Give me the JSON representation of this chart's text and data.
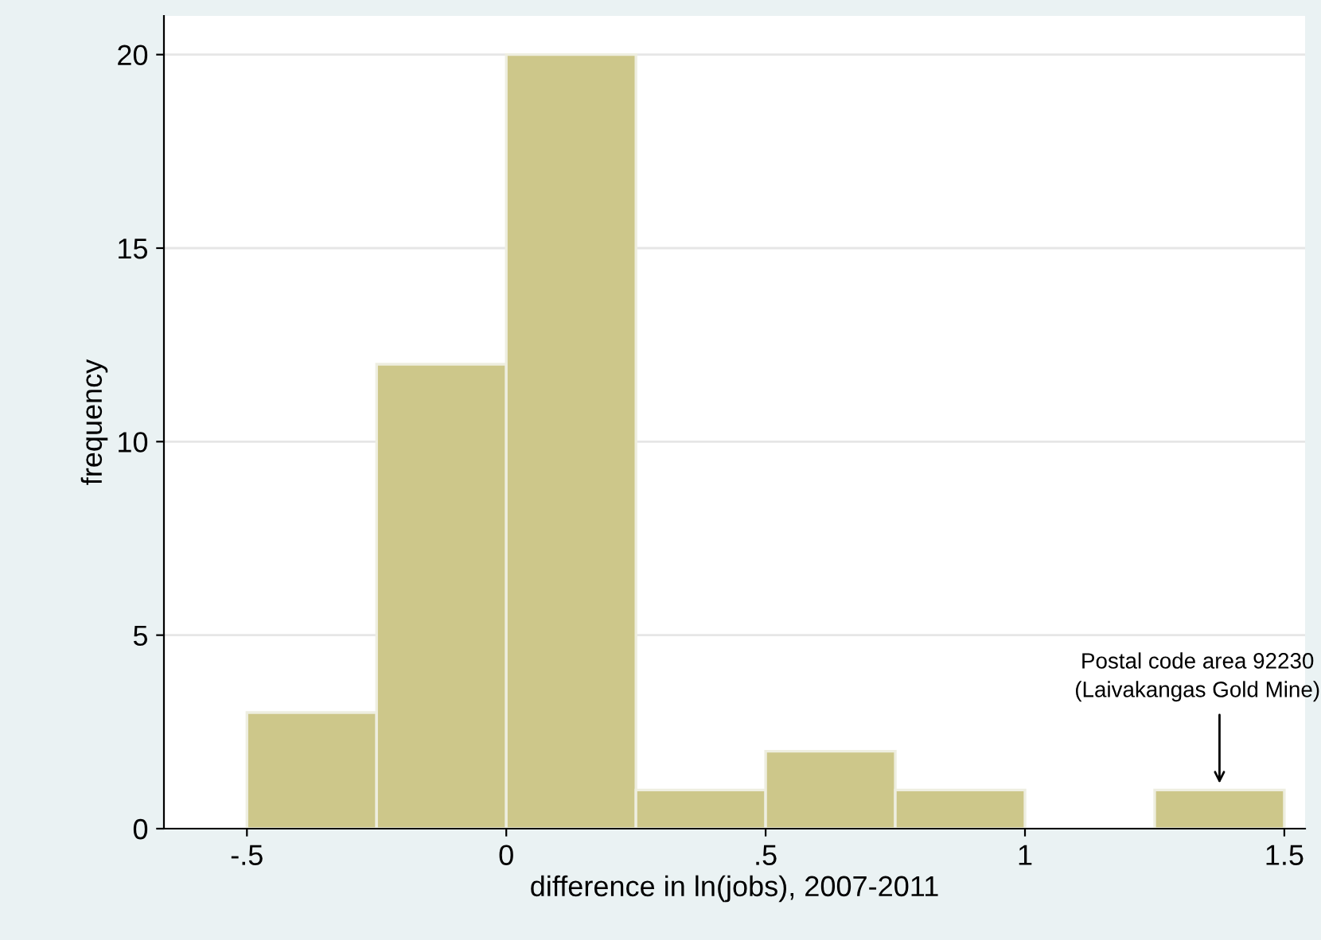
{
  "chart_data": {
    "type": "histogram",
    "xlabel": "difference in ln(jobs), 2007-2011",
    "ylabel": "frequency",
    "bins": [
      -0.5,
      -0.25,
      0,
      0.25,
      0.5,
      0.75,
      1,
      1.25,
      1.5
    ],
    "values": [
      3,
      12,
      20,
      1,
      2,
      1,
      0,
      1
    ],
    "color": "#cdc78a",
    "xlim": [
      -0.66,
      1.54
    ],
    "ylim": [
      0,
      21
    ],
    "xticks": [
      {
        "value": -0.5,
        "label": "-.5"
      },
      0,
      {
        "value": 0.5,
        "label": ".5"
      },
      1,
      1.5
    ],
    "yticks": [
      0,
      5,
      10,
      15,
      20
    ],
    "grid": "y",
    "annotations": [
      {
        "text": "Postal code area 92230\n(Laivakangas Gold Mine)",
        "x": 1.375,
        "y": 1
      }
    ]
  }
}
